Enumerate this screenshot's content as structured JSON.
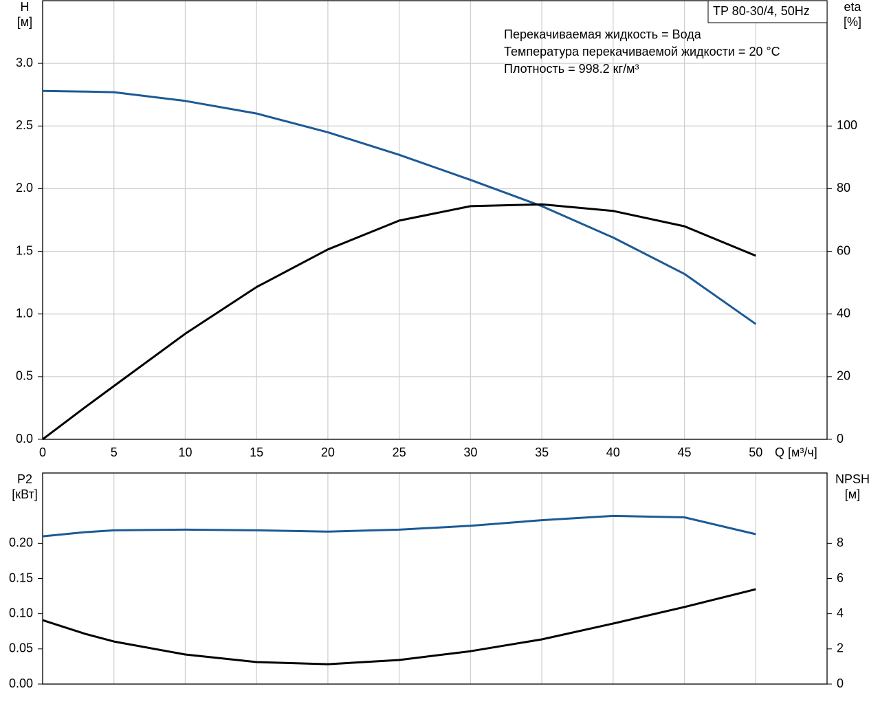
{
  "chart_data": [
    {
      "type": "line",
      "title": "TP 80-30/4, 50Hz",
      "annotations": [
        "Перекачиваемая жидкость = Вода",
        "Температура перекачиваемой жидкости = 20 °C",
        "Плотность = 998.2 кг/м³"
      ],
      "y_label": [
        "H",
        "[м]"
      ],
      "y2_label": [
        "eta",
        "[%]"
      ],
      "x_label": "Q [м³/ч]",
      "x": [
        0,
        3,
        5,
        10,
        15,
        20,
        25,
        30,
        35,
        40,
        45,
        50
      ],
      "xlim": [
        0,
        55
      ],
      "xticks": [
        0,
        5,
        10,
        15,
        20,
        25,
        30,
        35,
        40,
        45,
        50
      ],
      "ylim": [
        0,
        3.5
      ],
      "yticks": [
        {
          "value": 0,
          "label": "0.0"
        },
        0.5,
        {
          "value": 1,
          "label": "1.0"
        },
        1.5,
        {
          "value": 2,
          "label": "2.0"
        },
        2.5,
        {
          "value": 3,
          "label": "3.0"
        }
      ],
      "y2lim": [
        0,
        140
      ],
      "y2ticks": [
        0,
        20,
        40,
        60,
        80,
        100
      ],
      "grid": "both",
      "show_xtick_labels": true,
      "series": [
        {
          "name": "H",
          "color": "#1c5a96",
          "values": [
            2.78,
            2.775,
            2.77,
            2.7,
            2.6,
            2.45,
            2.27,
            2.07,
            1.86,
            1.61,
            1.32,
            0.92
          ]
        },
        {
          "name": "eta",
          "color": "#000000",
          "axis": "y2",
          "values": [
            0,
            10.3,
            17,
            33.7,
            48.6,
            60.6,
            69.8,
            74.4,
            75,
            72.9,
            68,
            58.6
          ]
        }
      ]
    },
    {
      "type": "line",
      "y_label": [
        "P2",
        "[кВт]"
      ],
      "y2_label": [
        "NPSH",
        "[м]"
      ],
      "x": [
        0,
        3,
        5,
        10,
        15,
        20,
        25,
        30,
        35,
        40,
        45,
        50
      ],
      "xlim": [
        0,
        55
      ],
      "xticks": [
        0,
        5,
        10,
        15,
        20,
        25,
        30,
        35,
        40,
        45,
        50
      ],
      "ylim": [
        0,
        0.3
      ],
      "yticks": [
        {
          "value": 0,
          "label": "0.00"
        },
        0.05,
        {
          "value": 0.1,
          "label": "0.10"
        },
        0.15,
        {
          "value": 0.2,
          "label": "0.20"
        }
      ],
      "y2lim": [
        0,
        12
      ],
      "y2ticks": [
        0,
        2,
        4,
        6,
        8
      ],
      "grid": "x",
      "show_xtick_labels": false,
      "series": [
        {
          "name": "P2",
          "color": "#1c5a96",
          "values": [
            0.21,
            0.216,
            0.2185,
            0.2195,
            0.2185,
            0.2166,
            0.2195,
            0.225,
            0.233,
            0.239,
            0.237,
            0.213
          ]
        },
        {
          "name": "NPSH",
          "color": "#000000",
          "axis": "y2",
          "values": [
            3.63,
            2.85,
            2.42,
            1.68,
            1.25,
            1.13,
            1.37,
            1.87,
            2.54,
            3.44,
            4.38,
            5.39
          ]
        }
      ]
    }
  ]
}
